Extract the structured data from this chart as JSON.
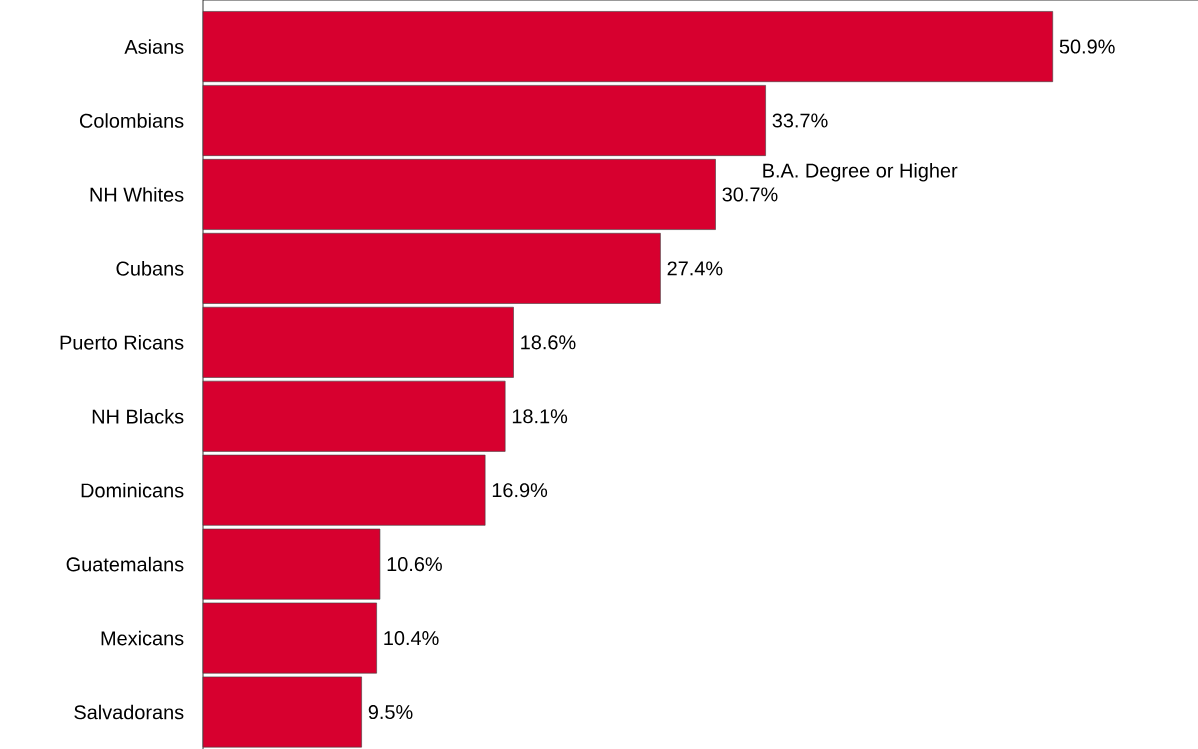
{
  "chart_data": {
    "type": "bar",
    "orientation": "horizontal",
    "categories": [
      "Asians",
      "Colombians",
      "NH Whites",
      "Cubans",
      "Puerto Ricans",
      "NH Blacks",
      "Dominicans",
      "Guatemalans",
      "Mexicans",
      "Salvadorans"
    ],
    "values": [
      50.9,
      33.7,
      30.7,
      27.4,
      18.6,
      18.1,
      16.9,
      10.6,
      10.4,
      9.5
    ],
    "value_labels": [
      "50.9%",
      "33.7%",
      "30.7%",
      "27.4%",
      "18.6%",
      "18.1%",
      "16.9%",
      "10.6%",
      "10.4%",
      "9.5%"
    ],
    "color": "#d7002f",
    "annotations": [
      "B.A. Degree or Higher"
    ]
  }
}
